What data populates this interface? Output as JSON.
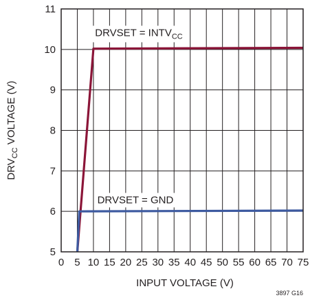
{
  "chart_data": {
    "type": "line",
    "title": "",
    "xlabel": "INPUT VOLTAGE (V)",
    "ylabel": {
      "main": "DRV",
      "sub": "CC",
      "rest": " VOLTAGE (V)"
    },
    "xlim": [
      0,
      75
    ],
    "ylim": [
      5,
      11
    ],
    "xticks": [
      0,
      5,
      10,
      15,
      20,
      25,
      30,
      35,
      40,
      45,
      50,
      55,
      60,
      65,
      70,
      75
    ],
    "yticks": [
      5,
      6,
      7,
      8,
      9,
      10,
      11
    ],
    "grid": true,
    "colors": {
      "intvcc": "#8b1538",
      "gnd": "#3d5aa0",
      "grid": "#231f20",
      "frame": "#231f20"
    },
    "series": [
      {
        "key": "intvcc",
        "name": {
          "main": "DRVSET = INTV",
          "sub": "CC"
        },
        "x": [
          5,
          10,
          75
        ],
        "y": [
          5,
          10.02,
          10.04
        ]
      },
      {
        "key": "gnd",
        "name": {
          "main": "DRVSET = GND",
          "sub": ""
        },
        "x": [
          5,
          5.6,
          75
        ],
        "y": [
          5,
          6.0,
          6.02
        ]
      }
    ],
    "annotations": [
      {
        "series": "intvcc",
        "x": 10.5,
        "y": 10.33
      },
      {
        "series": "gnd",
        "x": 11.2,
        "y": 6.2
      }
    ],
    "figure_id": "3897 G16"
  }
}
